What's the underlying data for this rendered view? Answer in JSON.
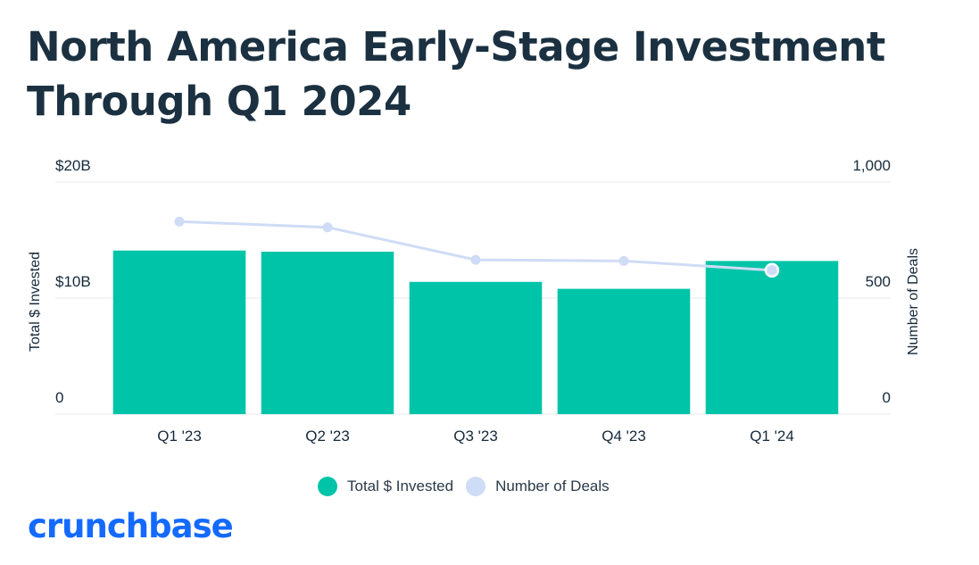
{
  "title": {
    "line1": "North America Early-Stage Investment",
    "line2": "Through Q1 2024"
  },
  "colors": {
    "bar": "#00c4a7",
    "line": "#cfdcf6",
    "grid": "#e6e9ec",
    "text": "#15293a",
    "brand": "#146aff"
  },
  "chart_data": {
    "type": "bar",
    "title": "North America Early-Stage Investment Through Q1 2024",
    "categories": [
      "Q1 '23",
      "Q2 '23",
      "Q3 '23",
      "Q4 '23",
      "Q1 '24"
    ],
    "series": [
      {
        "name": "Total $ Invested",
        "type": "bar",
        "axis": "left",
        "values": [
          14.1,
          14.0,
          11.4,
          10.8,
          13.2
        ]
      },
      {
        "name": "Number of Deals",
        "type": "line",
        "axis": "right",
        "values": [
          830,
          805,
          665,
          660,
          620
        ]
      }
    ],
    "ylabel": "Total $ Invested",
    "y2label": "Number of Deals",
    "ylim": [
      0,
      20
    ],
    "y2lim": [
      0,
      1000
    ],
    "yticks": [
      {
        "value": 0,
        "label": "0"
      },
      {
        "value": 10,
        "label": "$10B"
      },
      {
        "value": 20,
        "label": "$20B"
      }
    ],
    "y2ticks": [
      {
        "value": 0,
        "label": "0"
      },
      {
        "value": 500,
        "label": "500"
      },
      {
        "value": 1000,
        "label": "1,000"
      }
    ],
    "grid": true,
    "legend": "bottom-center"
  },
  "legend": {
    "bar_label": "Total $ Invested",
    "line_label": "Number of Deals"
  },
  "brand": {
    "logo_text": "crunchbase"
  }
}
